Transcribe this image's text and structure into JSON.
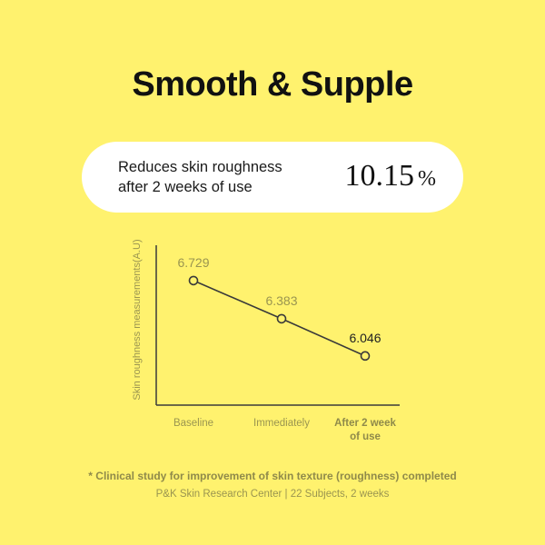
{
  "title": "Smooth & Supple",
  "highlight": {
    "line1": "Reduces skin roughness",
    "line2": "after 2 weeks of use",
    "value": "10.15",
    "unit": "%"
  },
  "chart_data": {
    "type": "line",
    "ylabel": "Skin roughness measurements(A.U)",
    "xlabel": "",
    "categories": [
      "Baseline",
      "Immediately",
      "After 2 week of use"
    ],
    "series": [
      {
        "values": [
          6.729,
          6.383,
          6.046
        ]
      }
    ],
    "value_labels": [
      "6.729",
      "6.383",
      "6.046"
    ],
    "ylim": [
      5.6,
      7.0
    ],
    "grid": false,
    "colors": {
      "line": "#3a3a3a",
      "muted_label": "#9a9550",
      "highlight_label": "#222222"
    }
  },
  "footnote": "* Clinical study for improvement of skin texture (roughness) completed",
  "source": "P&K Skin Research Center | 22 Subjects, 2 weeks",
  "colors": {
    "background": "#FFF26E",
    "pill": "#FFFFFF"
  }
}
